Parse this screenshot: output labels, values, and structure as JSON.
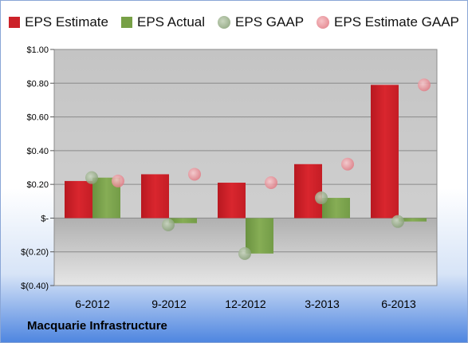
{
  "chart_data": {
    "type": "bar",
    "categories": [
      "6-2012",
      "9-2012",
      "12-2012",
      "3-2013",
      "6-2013"
    ],
    "series": [
      {
        "name": "EPS Estimate",
        "kind": "bar",
        "color": "#cc2229",
        "values": [
          0.22,
          0.26,
          0.21,
          0.32,
          0.79
        ]
      },
      {
        "name": "EPS Actual",
        "kind": "bar",
        "color": "#77a046",
        "values": [
          0.24,
          -0.03,
          -0.21,
          0.12,
          -0.02
        ]
      },
      {
        "name": "EPS GAAP",
        "kind": "point",
        "color": "#9cb38c",
        "values": [
          0.24,
          -0.04,
          -0.21,
          0.12,
          -0.02
        ]
      },
      {
        "name": "EPS Estimate GAAP",
        "kind": "point",
        "color": "#ec8f96",
        "values": [
          0.22,
          0.26,
          0.21,
          0.32,
          0.79
        ]
      }
    ],
    "ylim": [
      -0.4,
      1.0
    ],
    "yticks": [
      1.0,
      0.8,
      0.6,
      0.4,
      0.2,
      0,
      -0.2,
      -0.4
    ],
    "ytick_labels": [
      "$1.00",
      "$0.80",
      "$0.60",
      "$0.40",
      "$0.20",
      "$-",
      "$(0.20)",
      "$(0.40)"
    ],
    "grid": true,
    "legend_position": "top"
  },
  "footer": {
    "company": "Macquarie Infrastructure"
  }
}
